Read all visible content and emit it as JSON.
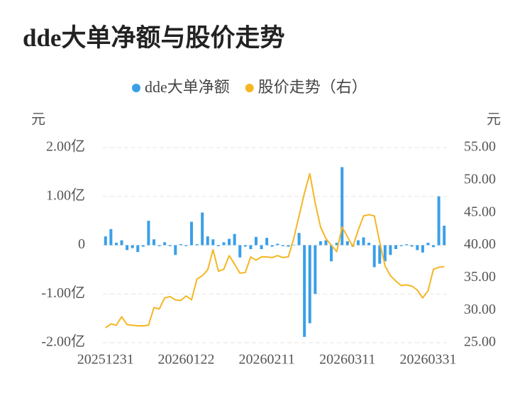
{
  "chart_data": {
    "type": "bar_line",
    "title": "dde大单净额与股价走势",
    "y_label": "元",
    "y2_label": "元",
    "categories": [
      "20251231",
      null,
      null,
      null,
      null,
      null,
      null,
      null,
      null,
      null,
      null,
      null,
      null,
      null,
      null,
      "20260122",
      null,
      null,
      null,
      null,
      null,
      null,
      null,
      null,
      null,
      null,
      null,
      null,
      null,
      null,
      "20260211",
      null,
      null,
      null,
      null,
      null,
      null,
      null,
      null,
      null,
      null,
      null,
      null,
      null,
      null,
      "20260311",
      null,
      null,
      null,
      null,
      null,
      null,
      null,
      null,
      null,
      null,
      null,
      null,
      null,
      null,
      "20260331",
      null,
      null,
      null
    ],
    "ylim": [
      -2,
      2
    ],
    "yticks": [
      {
        "value": -2,
        "label": "-2.00亿"
      },
      {
        "value": -1,
        "label": "-1.00亿"
      },
      0,
      {
        "value": 1,
        "label": "1.00亿"
      },
      {
        "value": 2,
        "label": "2.00亿"
      }
    ],
    "y2lim": [
      25,
      55
    ],
    "y2ticks": [
      {
        "value": 25,
        "label": "25.00"
      },
      {
        "value": 30,
        "label": "30.00"
      },
      {
        "value": 35,
        "label": "35.00"
      },
      {
        "value": 40,
        "label": "40.00"
      },
      {
        "value": 45,
        "label": "45.00"
      },
      {
        "value": 50,
        "label": "50.00"
      },
      {
        "value": 55,
        "label": "55.00"
      }
    ],
    "grid": true,
    "series": [
      {
        "name": "dde大单净额",
        "type": "bar",
        "color": "#3a9fe8",
        "values": [
          0.18,
          0.33,
          0.05,
          0.1,
          -0.1,
          -0.06,
          -0.14,
          -0.03,
          0.5,
          0.12,
          -0.02,
          0.06,
          -0.02,
          -0.2,
          0.02,
          -0.02,
          0.48,
          0.02,
          0.67,
          0.18,
          0.12,
          -0.02,
          0.06,
          0.13,
          0.23,
          -0.25,
          -0.03,
          -0.08,
          0.17,
          -0.08,
          0.15,
          -0.03,
          0.03,
          -0.02,
          -0.03,
          0.01,
          0.25,
          -1.88,
          -1.6,
          -1.0,
          0.08,
          0.1,
          -0.33,
          0.05,
          1.6,
          0.08,
          -0.03,
          0.1,
          0.16,
          0.05,
          -0.45,
          -0.38,
          -0.33,
          -0.2,
          -0.08,
          -0.02,
          0.02,
          -0.03,
          -0.1,
          -0.15,
          0.05,
          -0.04,
          1.0,
          0.4
        ]
      },
      {
        "name": "股价走势（右）",
        "type": "line",
        "axis": "y2",
        "color": "#f5b623",
        "values": [
          27.3,
          27.9,
          27.7,
          29.0,
          27.8,
          27.7,
          27.6,
          27.6,
          27.7,
          30.4,
          30.2,
          31.9,
          32.1,
          31.6,
          31.5,
          32.2,
          31.6,
          34.8,
          35.3,
          36.2,
          39.3,
          36.0,
          36.3,
          38.4,
          37.1,
          35.7,
          35.8,
          38.2,
          37.7,
          38.2,
          38.2,
          38.1,
          38.4,
          38.1,
          38.2,
          41.0,
          44.5,
          48.0,
          51.0,
          46.5,
          42.8,
          41.0,
          40.0,
          39.0,
          42.8,
          41.3,
          39.8,
          42.3,
          44.5,
          44.7,
          44.5,
          40.5,
          36.8,
          35.3,
          34.5,
          33.8,
          33.9,
          33.7,
          33.1,
          31.9,
          33.0,
          36.3,
          36.6,
          36.7
        ]
      }
    ]
  }
}
